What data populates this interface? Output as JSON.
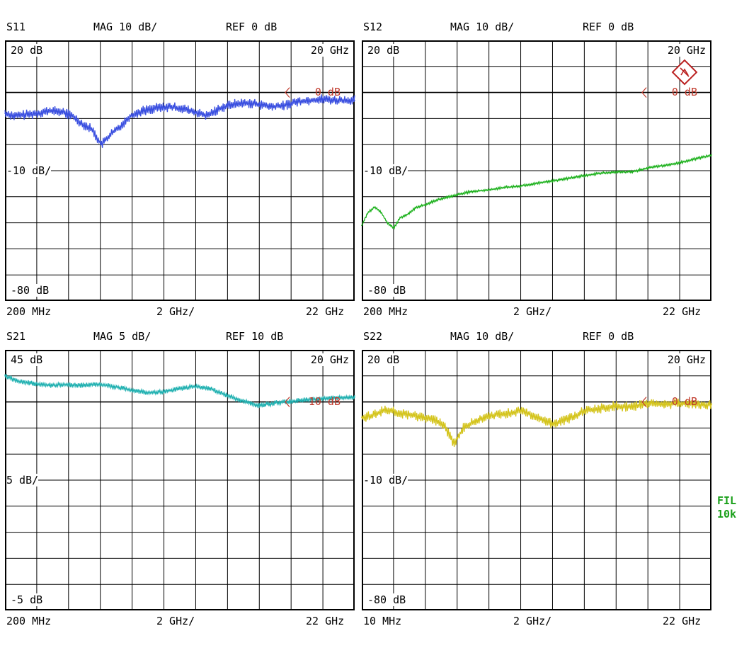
{
  "chart_data": [
    {
      "type": "line",
      "param": "S11",
      "mag": "MAG 10 dB/",
      "ref": "REF 0 dB",
      "top_label": "20 dB",
      "mid_label": "-10 dB/",
      "bottom_label": "-80 dB",
      "corner_label": "20 GHz",
      "ref_marker": "0 dB",
      "x_start": "200 MHz",
      "x_div": "2 GHz/",
      "x_stop": "22 GHz",
      "color": "#3a4fe0",
      "x_ghz": [
        0.2,
        0.8,
        1.5,
        2.2,
        3.0,
        3.8,
        4.4,
        5.0,
        5.6,
        6.2,
        6.8,
        7.4,
        8.0,
        8.8,
        9.6,
        10.4,
        11.2,
        12.0,
        12.8,
        13.6,
        14.4,
        15.2,
        16.0,
        16.8,
        17.6,
        18.4,
        19.2,
        20.0,
        20.8,
        21.6,
        22.0
      ],
      "y_db": [
        -8,
        -9,
        -8.5,
        -8,
        -7,
        -7.5,
        -9,
        -12,
        -14,
        -20,
        -16,
        -13,
        -9,
        -7,
        -6,
        -5.5,
        -6,
        -7.5,
        -9,
        -6,
        -4.5,
        -4,
        -4.5,
        -5.5,
        -5,
        -3.5,
        -3,
        -2.5,
        -3,
        -3,
        -3
      ]
    },
    {
      "type": "line",
      "param": "S12",
      "mag": "MAG 10 dB/",
      "ref": "REF 0 dB",
      "top_label": "20 dB",
      "mid_label": "-10 dB/",
      "bottom_label": "-80 dB",
      "corner_label": "20 GHz",
      "ref_marker": "0 dB",
      "x_start": "200 MHz",
      "x_div": "2 GHz/",
      "x_stop": "22 GHz",
      "color": "#1ab01a",
      "x_ghz": [
        0.2,
        0.6,
        1.0,
        1.4,
        1.8,
        2.2,
        2.6,
        3.0,
        3.6,
        4.2,
        5.0,
        6.0,
        7.0,
        8.0,
        9.0,
        10.0,
        11.0,
        12.0,
        13.0,
        14.0,
        15.0,
        16.0,
        17.0,
        18.0,
        19.0,
        20.0,
        21.0,
        22.0
      ],
      "y_db": [
        -51,
        -46,
        -44,
        -46,
        -50,
        -52,
        -48,
        -47,
        -44,
        -43,
        -41,
        -39.5,
        -38,
        -37.5,
        -36.5,
        -36,
        -35,
        -34,
        -33,
        -32,
        -31,
        -30.5,
        -30.5,
        -29,
        -28,
        -27,
        -25.5,
        -24
      ]
    },
    {
      "type": "line",
      "param": "S21",
      "mag": "MAG 5 dB/",
      "ref": "REF 10 dB",
      "top_label": "45 dB",
      "mid_label": "5 dB/",
      "bottom_label": "-5 dB",
      "corner_label": "20 GHz",
      "ref_marker": "10 dB",
      "x_start": "200 MHz",
      "x_div": "2 GHz/",
      "x_stop": "22 GHz",
      "color": "#1fb0b0",
      "x_ghz": [
        0.2,
        1.0,
        2.0,
        3.0,
        4.0,
        5.0,
        6.0,
        7.0,
        8.0,
        9.0,
        10.0,
        11.0,
        12.0,
        13.0,
        14.0,
        15.0,
        16.0,
        17.0,
        18.0,
        19.0,
        20.0,
        21.0,
        22.0
      ],
      "y_db": [
        15,
        14,
        13.5,
        13.2,
        13.3,
        13.2,
        13.4,
        13,
        12.3,
        11.8,
        11.9,
        12.5,
        13,
        12.6,
        11.3,
        10.2,
        9.3,
        9.8,
        10.1,
        10.4,
        10.6,
        10.8,
        10.9
      ]
    },
    {
      "type": "line",
      "param": "S22",
      "mag": "MAG 10 dB/",
      "ref": "REF 0 dB",
      "top_label": "20 dB",
      "mid_label": "-10 dB/",
      "bottom_label": "-80 dB",
      "corner_label": "20 GHz",
      "ref_marker": "0 dB",
      "x_start": "10 MHz",
      "x_div": "2 GHz/",
      "x_stop": "22 GHz",
      "color": "#d4c41c",
      "x_ghz": [
        0.01,
        0.8,
        1.5,
        2.5,
        3.5,
        4.5,
        5.2,
        5.8,
        6.4,
        7.2,
        8.0,
        9.0,
        10.0,
        11.0,
        12.0,
        13.0,
        14.0,
        15.0,
        16.0,
        17.0,
        18.0,
        19.0,
        20.0,
        21.0,
        22.0
      ],
      "y_db": [
        -6,
        -5,
        -3,
        -4.5,
        -5.5,
        -6.5,
        -9,
        -16,
        -10,
        -7,
        -5.5,
        -4.5,
        -3.5,
        -5.5,
        -8.5,
        -6.5,
        -3.5,
        -2.5,
        -1.5,
        -2,
        -0.5,
        -1,
        -0.5,
        -0.8,
        -1
      ]
    }
  ],
  "side_text": [
    "FIL",
    "10k"
  ]
}
